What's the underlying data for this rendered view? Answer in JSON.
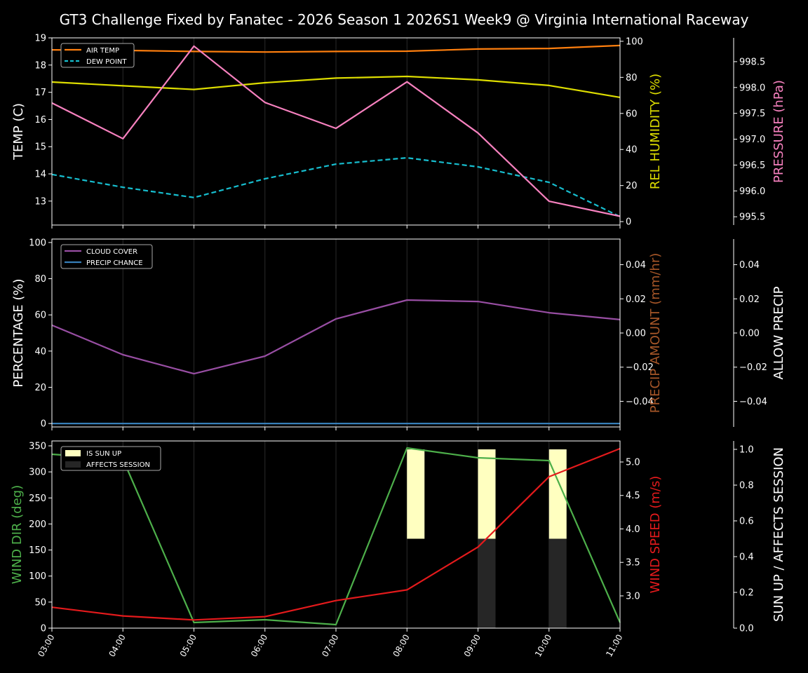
{
  "title": "GT3 Challenge Fixed by Fanatec - 2026 Season 1 2026S1 Week9 @ Virginia International Raceway",
  "colors": {
    "background": "#000000",
    "air_temp": "#ff7f0e",
    "dew_point": "#17becf",
    "humidity": "#dddd00",
    "pressure": "#f781bf",
    "cloud": "#984ea3",
    "precip_chance": "#377eb8",
    "precip_amount": "#a65628",
    "wind_dir": "#4daf4a",
    "wind_speed": "#e41a1c",
    "sun_up": "#ffffc0",
    "affects_session": "#262626"
  },
  "chart_data": [
    {
      "type": "line",
      "x": [
        "03:00",
        "04:00",
        "05:00",
        "06:00",
        "07:00",
        "08:00",
        "09:00",
        "10:00",
        "11:00"
      ],
      "grid": "vertical",
      "legend": "top-left",
      "axes": {
        "left": {
          "label": "TEMP (C)",
          "ylim": [
            12.12,
            19.0
          ],
          "ticks": [
            13,
            14,
            15,
            16,
            17,
            18,
            19
          ]
        },
        "right": {
          "label": "REL HUMIDITY (%)",
          "ylim": [
            -1.9,
            101.9
          ],
          "ticks": [
            0,
            20,
            40,
            60,
            80,
            100
          ]
        },
        "right2": {
          "label": "PRESSURE (hPa)",
          "ylim": [
            995.34,
            998.96
          ],
          "ticks": [
            "995.5",
            "996.0",
            "996.5",
            "997.0",
            "997.5",
            "998.0",
            "998.5"
          ]
        }
      },
      "series": [
        {
          "name": "AIR TEMP",
          "axis": "left",
          "style": "solid",
          "values": [
            18.56,
            18.54,
            18.5,
            18.48,
            18.5,
            18.51,
            18.59,
            18.61,
            18.72
          ]
        },
        {
          "name": "DEW POINT",
          "axis": "left",
          "style": "dashed",
          "values": [
            13.98,
            13.51,
            13.13,
            13.82,
            14.36,
            14.59,
            14.26,
            13.69,
            12.43
          ]
        },
        {
          "axis": "right",
          "style": "solid",
          "values": [
            77.4,
            75.3,
            73.3,
            77.0,
            79.6,
            80.5,
            78.6,
            75.5,
            68.9
          ]
        },
        {
          "axis": "right2",
          "style": "solid",
          "values": [
            997.7,
            997.01,
            998.8,
            997.71,
            997.21,
            998.11,
            997.12,
            995.8,
            995.51
          ]
        }
      ]
    },
    {
      "type": "line",
      "x": [
        "03:00",
        "04:00",
        "05:00",
        "06:00",
        "07:00",
        "08:00",
        "09:00",
        "10:00",
        "11:00"
      ],
      "grid": "vertical",
      "legend": "top-left",
      "axes": {
        "left": {
          "label": "PERCENTAGE (%)",
          "ylim": [
            -1.9,
            101.9
          ],
          "ticks": [
            0,
            20,
            40,
            60,
            80,
            100
          ]
        },
        "right": {
          "label": "PRECIP AMOUNT (mm/hr)",
          "ylim": [
            -0.055,
            0.055
          ],
          "ticks": [
            "−0.04",
            "−0.02",
            "0.00",
            "0.02",
            "0.04"
          ]
        },
        "right2": {
          "label": "ALLOW PRECIP",
          "ylim": [
            -0.055,
            0.055
          ],
          "ticks": [
            "−0.04",
            "−0.02",
            "0.00",
            "0.02",
            "0.04"
          ]
        }
      },
      "series": [
        {
          "name": "CLOUD COVER",
          "axis": "left",
          "style": "solid",
          "values": [
            54.3,
            38.0,
            27.5,
            37.2,
            57.8,
            68.2,
            67.4,
            61.2,
            57.4
          ]
        },
        {
          "name": "PRECIP CHANCE",
          "axis": "left",
          "style": "solid",
          "values": [
            0,
            0,
            0,
            0,
            0,
            0,
            0,
            0,
            0
          ]
        }
      ]
    },
    {
      "type": "line",
      "x": [
        "03:00",
        "04:00",
        "05:00",
        "06:00",
        "07:00",
        "08:00",
        "09:00",
        "10:00",
        "11:00"
      ],
      "grid": "vertical",
      "legend": "top-left",
      "axes": {
        "left": {
          "label": "WIND DIR (deg)",
          "ylim": [
            0,
            359.4
          ],
          "ticks": [
            0,
            50,
            100,
            150,
            200,
            250,
            300,
            350
          ]
        },
        "right": {
          "label": "WIND SPEED (m/s)",
          "ylim": [
            2.518,
            5.314
          ],
          "ticks": [
            "3.0",
            "3.5",
            "4.0",
            "4.5",
            "5.0"
          ]
        },
        "right2": {
          "label": "SUN UP / AFFECTS SESSION",
          "ylim": [
            0,
            1.047
          ],
          "ticks": [
            "0.0",
            "0.2",
            "0.4",
            "0.6",
            "0.8",
            "1.0"
          ]
        }
      },
      "bars": [
        {
          "name": "IS SUN UP",
          "values": [
            0,
            0,
            0,
            0,
            0,
            1,
            1,
            1,
            0
          ]
        },
        {
          "name": "AFFECTS SESSION",
          "values": [
            0,
            0,
            0,
            0,
            0,
            0,
            1,
            1,
            0
          ]
        }
      ],
      "series": [
        {
          "axis": "left",
          "style": "solid",
          "values": [
            333.8,
            324.4,
            10.8,
            16.2,
            6.7,
            345.9,
            327.1,
            321.7,
            10.8
          ]
        },
        {
          "axis": "right",
          "style": "solid",
          "values": [
            2.83,
            2.7,
            2.64,
            2.69,
            2.93,
            3.09,
            3.73,
            4.78,
            5.2
          ]
        }
      ]
    }
  ]
}
